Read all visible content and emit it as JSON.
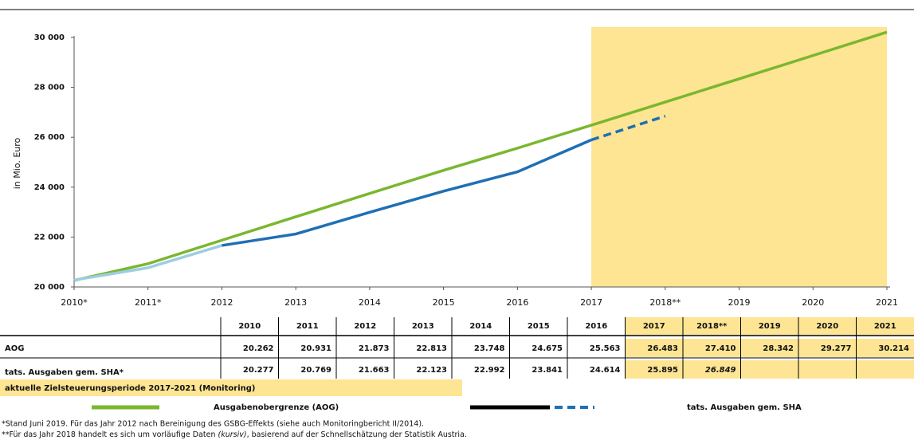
{
  "chart_data": {
    "type": "line",
    "ylabel": "in Mio. Euro",
    "categories": [
      "2010*",
      "2011*",
      "2012",
      "2013",
      "2014",
      "2015",
      "2016",
      "2017",
      "2018**",
      "2019",
      "2020",
      "2021"
    ],
    "ylim": [
      20000,
      30000
    ],
    "yticks": [
      {
        "value": 20000,
        "label": "20 000"
      },
      {
        "value": 22000,
        "label": "22 000"
      },
      {
        "value": 24000,
        "label": "24 000"
      },
      {
        "value": 26000,
        "label": "26 000"
      },
      {
        "value": 28000,
        "label": "28 000"
      },
      {
        "value": 30000,
        "label": "30 000"
      }
    ],
    "highlight": {
      "label": "aktuelle Zielsteuerungsperiode 2017-2021 (Monitoring)",
      "color": "#fde593",
      "from": "2017",
      "to": "2021"
    },
    "series": [
      {
        "name": "Ausgabenobergrenze (AOG)",
        "color": "#7ab72f",
        "values": [
          20262,
          20931,
          21873,
          22813,
          23748,
          24675,
          25563,
          26483,
          27410,
          28342,
          29277,
          30214
        ]
      },
      {
        "name": "tats. Ausgaben gem. SHA",
        "color": "#1f6fb5",
        "values": [
          20277,
          20769,
          21663,
          22123,
          22992,
          23841,
          24614,
          25895,
          26849,
          null,
          null,
          null
        ]
      }
    ]
  },
  "table": {
    "header": [
      "2010",
      "2011",
      "2012",
      "2013",
      "2014",
      "2015",
      "2016",
      "2017",
      "2018**",
      "2019",
      "2020",
      "2021"
    ],
    "rows": [
      {
        "label": "AOG",
        "cells": [
          "20.262",
          "20.931",
          "21.873",
          "22.813",
          "23.748",
          "24.675",
          "25.563",
          "26.483",
          "27.410",
          "28.342",
          "29.277",
          "30.214"
        ]
      },
      {
        "label": "tats. Ausgaben gem. SHA*",
        "cells": [
          "20.277",
          "20.769",
          "21.663",
          "22.123",
          "22.992",
          "23.841",
          "24.614",
          "25.895",
          "26.849"
        ]
      }
    ]
  },
  "footnotes": [
    "*Stand Juni 2019. Für das Jahr 2012 nach Bereinigung des GSBG-Effekts (siehe auch Monitoringbericht II/2014).",
    {
      "before": "**Für das Jahr 2018 handelt es sich um vorläufige Daten ",
      "italic": "(kursiv)",
      "after": ", basierend auf der Schnellschätzung der Statistik Austria."
    }
  ]
}
